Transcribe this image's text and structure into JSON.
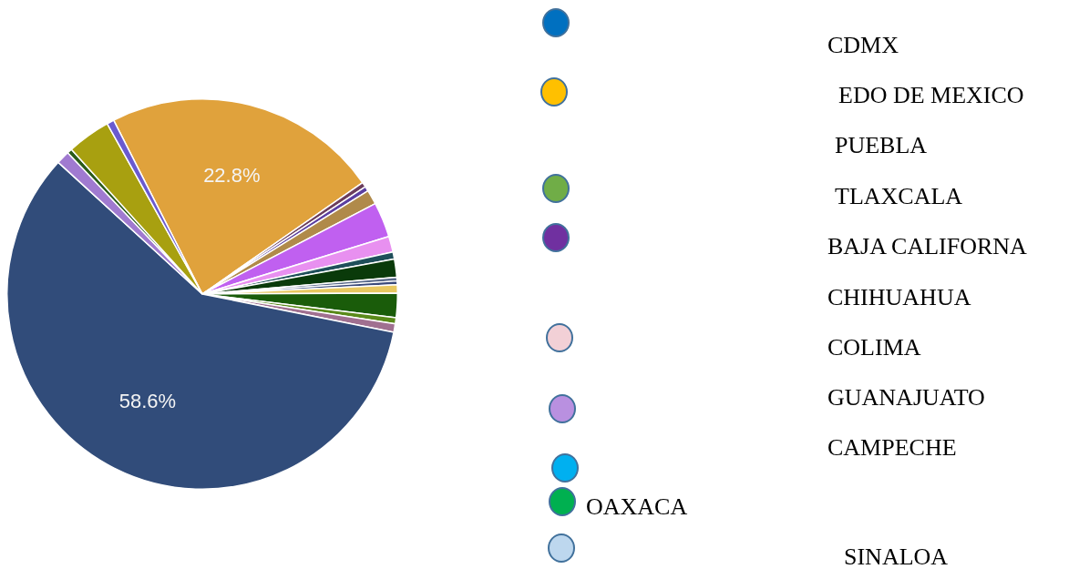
{
  "chart_data": {
    "type": "pie",
    "categories": [
      null,
      null,
      null,
      null,
      null,
      null,
      null,
      null,
      null,
      null,
      null,
      null,
      null,
      null,
      null,
      null,
      null,
      null,
      null
    ],
    "values": [
      22.8,
      0.4,
      0.4,
      1.2,
      2.9,
      1.3,
      0.6,
      1.5,
      0.3,
      0.3,
      0.7,
      2.0,
      0.5,
      0.7,
      58.6,
      1.1,
      0.4,
      3.6,
      0.6
    ],
    "colors": [
      "#e0a23c",
      "#6b3d5c",
      "#5b3fa0",
      "#b08a4a",
      "#c060f0",
      "#e890f0",
      "#1f4f5a",
      "#0a3a0a",
      "#5a6a8a",
      "#3a4a7a",
      "#e8c860",
      "#1a5c0a",
      "#5a8a1a",
      "#a07090",
      "#314c7a",
      "#a07ad0",
      "#2a5a1a",
      "#a8a010",
      "#6a5ad0"
    ],
    "value_labels": [
      "22.8%",
      null,
      null,
      null,
      null,
      null,
      null,
      null,
      null,
      null,
      null,
      null,
      null,
      null,
      "58.6%",
      null,
      null,
      null,
      null
    ],
    "annotations": [
      "CDMX",
      "EDO DE MEXICO",
      "PUEBLA",
      "TLAXCALA",
      "BAJA CALIFORNA",
      "CHIHUAHUA",
      "COLIMA",
      "GUANAJUATO",
      "CAMPECHE",
      "OAXACA",
      "SINALOA"
    ],
    "legend": false
  }
}
